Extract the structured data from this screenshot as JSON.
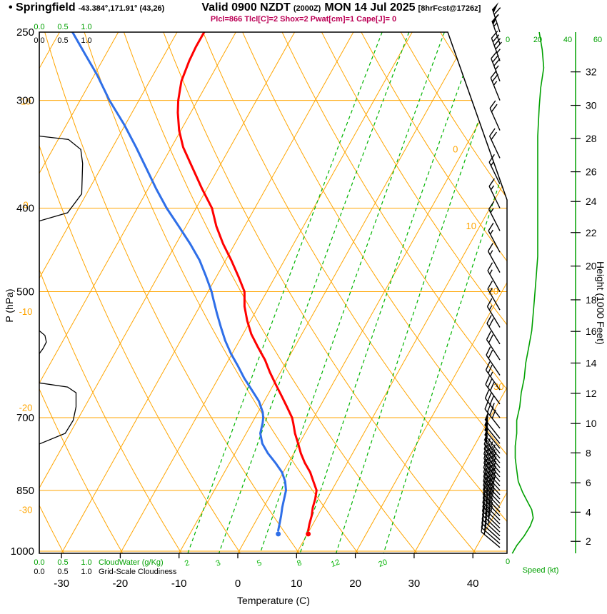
{
  "header": {
    "station": "• Springfield",
    "coords": "-43.384°,171.91° (43,26)",
    "valid_main": "Valid 0900 NZDT",
    "valid_z": "(2000Z)",
    "valid_date": "MON 14 Jul 2025",
    "fcst": "[8hrFcst@1726z]",
    "params": "Plcl=866 Tlcl[C]=2 Shox=2 Pwat[cm]=1 Cape[J]= 0"
  },
  "axes": {
    "pressure_label": "P (hPa)",
    "pressure_ticks": [
      250,
      300,
      400,
      500,
      700,
      850,
      1000
    ],
    "temp_label": "Temperature (C)",
    "temp_ticks": [
      -30,
      -20,
      -10,
      0,
      10,
      20,
      30,
      40
    ],
    "height_label": "Height (1000 Feet)",
    "height_ticks": [
      {
        "v": 2,
        "p": 974
      },
      {
        "v": 4,
        "p": 901
      },
      {
        "v": 6,
        "p": 833
      },
      {
        "v": 8,
        "p": 769
      },
      {
        "v": 10,
        "p": 711
      },
      {
        "v": 12,
        "p": 656
      },
      {
        "v": 14,
        "p": 605
      },
      {
        "v": 16,
        "p": 556
      },
      {
        "v": 18,
        "p": 511
      },
      {
        "v": 20,
        "p": 467
      },
      {
        "v": 22,
        "p": 427
      },
      {
        "v": 24,
        "p": 393
      },
      {
        "v": 26,
        "p": 363
      },
      {
        "v": 28,
        "p": 332
      },
      {
        "v": 30,
        "p": 304
      },
      {
        "v": 32,
        "p": 278
      }
    ],
    "speed_label": "Speed (kt)",
    "speed_scale": [
      0,
      20,
      40,
      60
    ],
    "speed_zero": "0",
    "cloudwater_label": "CloudWater (g/Kg)",
    "cloudwater_scale": [
      "0.0",
      "0.5",
      "1.0"
    ],
    "cloudiness_label": "Grid-Scale Cloudiness",
    "cloudiness_scale": [
      "0.0",
      "0.5",
      "1.0"
    ]
  },
  "chart_data": {
    "type": "skewt-log-p",
    "xlabel": "Temperature (C)",
    "ylabel": "P (hPa)",
    "y2label": "Height (1000 Feet)",
    "pressure_range": [
      250,
      1006
    ],
    "isobars": [
      300,
      400,
      500,
      700,
      850,
      1000
    ],
    "isotherms": [
      -110,
      -100,
      -90,
      -80,
      -70,
      -60,
      -50,
      -40,
      -30,
      -20,
      -10,
      0,
      10,
      20,
      30,
      40
    ],
    "dry_adiabats": [
      -40,
      -30,
      -20,
      -10,
      0,
      10,
      20,
      30,
      40,
      50,
      60,
      70,
      80,
      90,
      100,
      110,
      120
    ],
    "mixing_ratios": [
      2,
      3,
      5,
      8,
      12,
      20
    ],
    "isotherm_labels": [
      {
        "t": 0,
        "p": 342
      },
      {
        "t": 10,
        "p": 420
      },
      {
        "t": 20,
        "p": 500
      },
      {
        "t": 30,
        "p": 645
      }
    ],
    "adiabat_labels": [
      {
        "t": 10,
        "p": 301
      },
      {
        "t": 0,
        "p": 397
      },
      {
        "t": -10,
        "p": 528
      },
      {
        "t": -20,
        "p": 682
      },
      {
        "t": -30,
        "p": 896
      }
    ],
    "temperature": {
      "name": "Temperature",
      "color": "#ff0000",
      "points": [
        [
          946,
          9.8
        ],
        [
          930,
          9.4
        ],
        [
          910,
          9.0
        ],
        [
          890,
          8.4
        ],
        [
          870,
          8.0
        ],
        [
          850,
          7.4
        ],
        [
          830,
          6.0
        ],
        [
          810,
          4.6
        ],
        [
          790,
          2.8
        ],
        [
          770,
          1.2
        ],
        [
          750,
          -0.2
        ],
        [
          730,
          -1.7
        ],
        [
          710,
          -3.0
        ],
        [
          700,
          -3.7
        ],
        [
          680,
          -5.6
        ],
        [
          660,
          -7.6
        ],
        [
          640,
          -9.7
        ],
        [
          620,
          -11.8
        ],
        [
          600,
          -13.8
        ],
        [
          580,
          -16.2
        ],
        [
          560,
          -18.6
        ],
        [
          540,
          -20.6
        ],
        [
          520,
          -22.4
        ],
        [
          500,
          -23.8
        ],
        [
          480,
          -26.3
        ],
        [
          460,
          -29.0
        ],
        [
          440,
          -32.0
        ],
        [
          420,
          -34.8
        ],
        [
          400,
          -37.3
        ],
        [
          380,
          -40.8
        ],
        [
          360,
          -44.3
        ],
        [
          340,
          -48.0
        ],
        [
          325,
          -50.3
        ],
        [
          310,
          -52.2
        ],
        [
          300,
          -53.3
        ],
        [
          285,
          -54.6
        ],
        [
          270,
          -55.2
        ],
        [
          260,
          -55.4
        ],
        [
          250,
          -55.4
        ]
      ]
    },
    "dewpoint": {
      "name": "Dewpoint",
      "color": "#2f6fe8",
      "points": [
        [
          946,
          4.7
        ],
        [
          930,
          4.3
        ],
        [
          910,
          3.8
        ],
        [
          890,
          3.2
        ],
        [
          870,
          2.7
        ],
        [
          850,
          2.2
        ],
        [
          830,
          1.2
        ],
        [
          810,
          -0.2
        ],
        [
          790,
          -2.2
        ],
        [
          770,
          -4.4
        ],
        [
          750,
          -6.3
        ],
        [
          730,
          -7.6
        ],
        [
          710,
          -8.2
        ],
        [
          700,
          -8.6
        ],
        [
          690,
          -9.2
        ],
        [
          670,
          -10.9
        ],
        [
          650,
          -13.2
        ],
        [
          630,
          -15.6
        ],
        [
          610,
          -17.8
        ],
        [
          590,
          -20.2
        ],
        [
          570,
          -22.4
        ],
        [
          550,
          -24.4
        ],
        [
          530,
          -26.4
        ],
        [
          510,
          -28.4
        ],
        [
          500,
          -29.4
        ],
        [
          480,
          -31.8
        ],
        [
          460,
          -34.4
        ],
        [
          440,
          -37.6
        ],
        [
          420,
          -41.2
        ],
        [
          400,
          -45.0
        ],
        [
          380,
          -48.6
        ],
        [
          360,
          -52.2
        ],
        [
          340,
          -56.0
        ],
        [
          320,
          -60.2
        ],
        [
          300,
          -65.0
        ],
        [
          280,
          -69.6
        ],
        [
          265,
          -73.6
        ],
        [
          250,
          -77.8
        ]
      ]
    },
    "cloudiness": {
      "name": "Grid-Scale Cloudiness",
      "points": [
        [
          250,
          0
        ],
        [
          330,
          0
        ],
        [
          333,
          0.62
        ],
        [
          342,
          0.88
        ],
        [
          355,
          0.92
        ],
        [
          385,
          0.9
        ],
        [
          405,
          0.6
        ],
        [
          414,
          0
        ],
        [
          555,
          0
        ],
        [
          562,
          0.12
        ],
        [
          572,
          0.15
        ],
        [
          582,
          0.08
        ],
        [
          590,
          0
        ],
        [
          638,
          0
        ],
        [
          645,
          0.6
        ],
        [
          655,
          0.78
        ],
        [
          680,
          0.78
        ],
        [
          705,
          0.72
        ],
        [
          730,
          0.55
        ],
        [
          751,
          0
        ],
        [
          1006,
          0
        ]
      ]
    },
    "wind_speed_profile": {
      "name": "Speed (kt)",
      "points": [
        [
          1006,
          3
        ],
        [
          985,
          6
        ],
        [
          960,
          11
        ],
        [
          935,
          15
        ],
        [
          915,
          17
        ],
        [
          895,
          16
        ],
        [
          875,
          13
        ],
        [
          855,
          10
        ],
        [
          830,
          7
        ],
        [
          805,
          6
        ],
        [
          780,
          5
        ],
        [
          755,
          5
        ],
        [
          730,
          6
        ],
        [
          705,
          6
        ],
        [
          680,
          8
        ],
        [
          655,
          9
        ],
        [
          630,
          11
        ],
        [
          605,
          12
        ],
        [
          580,
          14
        ],
        [
          555,
          16
        ],
        [
          530,
          17
        ],
        [
          505,
          18
        ],
        [
          480,
          19
        ],
        [
          455,
          20
        ],
        [
          430,
          20
        ],
        [
          405,
          20
        ],
        [
          380,
          20
        ],
        [
          355,
          20
        ],
        [
          330,
          20
        ],
        [
          305,
          21
        ],
        [
          290,
          22
        ],
        [
          275,
          24
        ],
        [
          262,
          23
        ],
        [
          250,
          21
        ]
      ]
    },
    "wind_barbs": [
      [
        990,
        18,
        310
      ],
      [
        980,
        20,
        311
      ],
      [
        970,
        22,
        312
      ],
      [
        960,
        25,
        313
      ],
      [
        950,
        28,
        314
      ],
      [
        940,
        30,
        314
      ],
      [
        930,
        32,
        315
      ],
      [
        920,
        34,
        315
      ],
      [
        910,
        35,
        316
      ],
      [
        900,
        36,
        316
      ],
      [
        890,
        38,
        317
      ],
      [
        880,
        40,
        317
      ],
      [
        870,
        40,
        317
      ],
      [
        860,
        42,
        318
      ],
      [
        850,
        42,
        318
      ],
      [
        840,
        44,
        318
      ],
      [
        830,
        45,
        319
      ],
      [
        820,
        45,
        319
      ],
      [
        810,
        46,
        319
      ],
      [
        800,
        46,
        320
      ],
      [
        790,
        47,
        320
      ],
      [
        780,
        48,
        320
      ],
      [
        770,
        48,
        321
      ],
      [
        760,
        49,
        321
      ],
      [
        750,
        50,
        321
      ],
      [
        740,
        50,
        322
      ],
      [
        720,
        40,
        322
      ],
      [
        700,
        35,
        323
      ],
      [
        675,
        30,
        324
      ],
      [
        650,
        25,
        325
      ],
      [
        625,
        22,
        326
      ],
      [
        600,
        20,
        327
      ],
      [
        575,
        18,
        328
      ],
      [
        550,
        15,
        329
      ],
      [
        525,
        15,
        330
      ],
      [
        500,
        15,
        330
      ],
      [
        475,
        15,
        331
      ],
      [
        450,
        15,
        332
      ],
      [
        425,
        15,
        333
      ],
      [
        400,
        15,
        334
      ],
      [
        375,
        15,
        334
      ],
      [
        350,
        18,
        335
      ],
      [
        325,
        20,
        336
      ],
      [
        300,
        25,
        338
      ],
      [
        285,
        35,
        339
      ],
      [
        270,
        45,
        340
      ],
      [
        258,
        55,
        341
      ],
      [
        250,
        65,
        342
      ]
    ],
    "colors": {
      "grid": "#ffa500",
      "moist": "#00b400",
      "green": "#00a000",
      "temp": "#ff0000",
      "dew": "#2f6fe8",
      "params": "#bb0055",
      "black": "#000000"
    }
  }
}
